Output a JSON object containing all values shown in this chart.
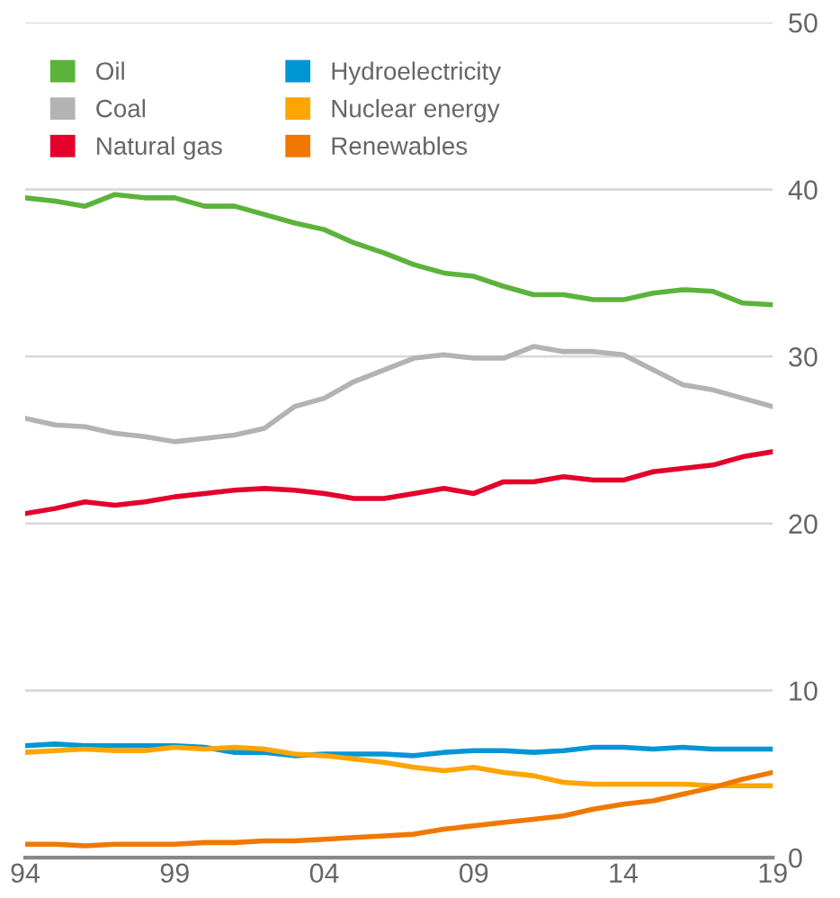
{
  "chart_data": {
    "type": "line",
    "x": [
      1994,
      1995,
      1996,
      1997,
      1998,
      1999,
      2000,
      2001,
      2002,
      2003,
      2004,
      2005,
      2006,
      2007,
      2008,
      2009,
      2010,
      2011,
      2012,
      2013,
      2014,
      2015,
      2016,
      2017,
      2018,
      2019
    ],
    "series": [
      {
        "name": "Oil",
        "color": "#5cb33c",
        "values": [
          39.5,
          39.3,
          39.0,
          39.7,
          39.5,
          39.5,
          39.0,
          39.0,
          38.5,
          38.0,
          37.6,
          36.8,
          36.2,
          35.5,
          35.0,
          34.8,
          34.2,
          33.7,
          33.7,
          33.4,
          33.4,
          33.8,
          34.0,
          33.9,
          33.2,
          33.1
        ]
      },
      {
        "name": "Coal",
        "color": "#b3b3b3",
        "values": [
          26.3,
          25.9,
          25.8,
          25.4,
          25.2,
          24.9,
          25.1,
          25.3,
          25.7,
          27.0,
          27.5,
          28.5,
          29.2,
          29.9,
          30.1,
          29.9,
          29.9,
          30.6,
          30.3,
          30.3,
          30.1,
          29.2,
          28.3,
          28.0,
          27.5,
          27.0
        ]
      },
      {
        "name": "Natural gas",
        "color": "#e4002b",
        "values": [
          20.6,
          20.9,
          21.3,
          21.1,
          21.3,
          21.6,
          21.8,
          22.0,
          22.1,
          22.0,
          21.8,
          21.5,
          21.5,
          21.8,
          22.1,
          21.8,
          22.5,
          22.5,
          22.8,
          22.6,
          22.6,
          23.1,
          23.3,
          23.5,
          24.0,
          24.3
        ]
      },
      {
        "name": "Hydroelectricity",
        "color": "#0096d6",
        "values": [
          6.7,
          6.8,
          6.7,
          6.7,
          6.7,
          6.7,
          6.6,
          6.3,
          6.3,
          6.1,
          6.2,
          6.2,
          6.2,
          6.1,
          6.3,
          6.4,
          6.4,
          6.3,
          6.4,
          6.6,
          6.6,
          6.5,
          6.6,
          6.5,
          6.5,
          6.5
        ]
      },
      {
        "name": "Nuclear energy",
        "color": "#ffa400",
        "values": [
          6.3,
          6.4,
          6.5,
          6.4,
          6.4,
          6.6,
          6.5,
          6.6,
          6.5,
          6.2,
          6.1,
          5.9,
          5.7,
          5.4,
          5.2,
          5.4,
          5.1,
          4.9,
          4.5,
          4.4,
          4.4,
          4.4,
          4.4,
          4.3,
          4.3,
          4.3
        ]
      },
      {
        "name": "Renewables",
        "color": "#f07800",
        "values": [
          0.8,
          0.8,
          0.7,
          0.8,
          0.8,
          0.8,
          0.9,
          0.9,
          1.0,
          1.0,
          1.1,
          1.2,
          1.3,
          1.4,
          1.7,
          1.9,
          2.1,
          2.3,
          2.5,
          2.9,
          3.2,
          3.4,
          3.8,
          4.2,
          4.7,
          5.1
        ]
      }
    ],
    "xlim": [
      1994,
      2019
    ],
    "xticks": [
      {
        "value": 1994,
        "label": "94"
      },
      {
        "value": 1999,
        "label": "99"
      },
      {
        "value": 2004,
        "label": "04"
      },
      {
        "value": 2009,
        "label": "09"
      },
      {
        "value": 2014,
        "label": "14"
      },
      {
        "value": 2019,
        "label": "19"
      }
    ],
    "ylim": [
      0,
      50
    ],
    "yticks": [
      0,
      10,
      20,
      30,
      40,
      50
    ],
    "grid": "y",
    "legend": "top left",
    "marker": "none",
    "line_style": "solid"
  }
}
